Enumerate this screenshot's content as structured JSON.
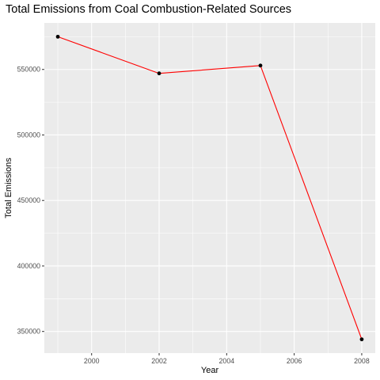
{
  "chart_data": {
    "type": "line",
    "title": "Total Emissions from Coal Combustion-Related Sources",
    "xlabel": "Year",
    "ylabel": "Total Emissions",
    "x": [
      1999,
      2002,
      2005,
      2008
    ],
    "series": [
      {
        "values": [
          575000,
          547000,
          553000,
          344000
        ],
        "color": "#ff0000",
        "marker_color": "#000000"
      }
    ],
    "xlim": [
      1998.6,
      2008.4
    ],
    "ylim": [
      333500,
      585500
    ],
    "xticks": [
      2000,
      2002,
      2004,
      2006,
      2008
    ],
    "yticks": [
      350000,
      400000,
      450000,
      500000,
      550000
    ],
    "xtick_labels": [
      "2000",
      "2002",
      "2004",
      "2006",
      "2008"
    ],
    "ytick_labels": [
      "350000",
      "400000",
      "450000",
      "500000",
      "550000"
    ],
    "grid": true,
    "panel_background": "#ebebeb",
    "gridline_color": "#ffffff"
  }
}
